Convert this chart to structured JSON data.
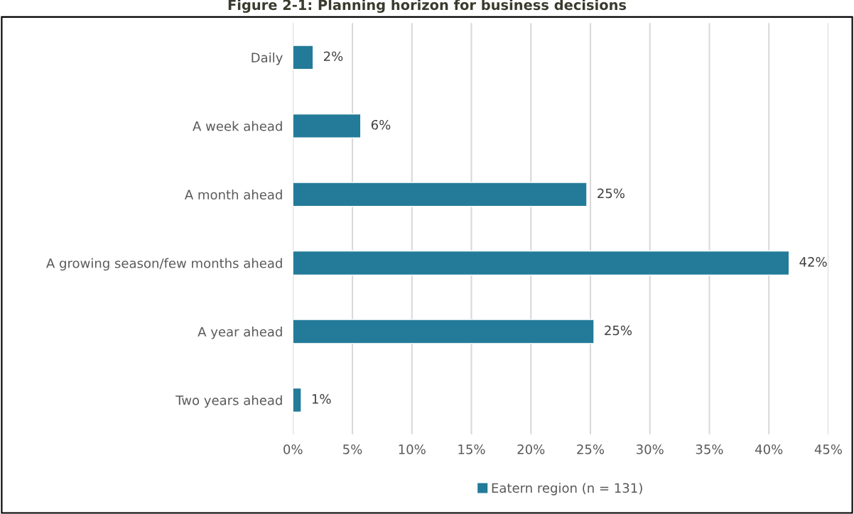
{
  "chart_data": {
    "type": "bar",
    "orientation": "horizontal",
    "title": "Figure 2-1: Planning horizon for business decisions",
    "categories": [
      "Daily",
      "A week ahead",
      "A month ahead",
      "A growing season/few months ahead",
      "A year ahead",
      "Two years ahead"
    ],
    "series": [
      {
        "name": "Eatern region (n = 131)",
        "color": "#237b99",
        "values": [
          1.7,
          5.7,
          24.7,
          41.7,
          25.3,
          0.7
        ],
        "value_labels": [
          "2%",
          "6%",
          "25%",
          "42%",
          "25%",
          "1%"
        ]
      }
    ],
    "xlim": [
      0,
      45
    ],
    "xticks": [
      {
        "value": 0,
        "label": "0%"
      },
      {
        "value": 5,
        "label": "5%"
      },
      {
        "value": 10,
        "label": "10%"
      },
      {
        "value": 15,
        "label": "15%"
      },
      {
        "value": 20,
        "label": "20%"
      },
      {
        "value": 25,
        "label": "25%"
      },
      {
        "value": 30,
        "label": "30%"
      },
      {
        "value": 35,
        "label": "35%"
      },
      {
        "value": 40,
        "label": "40%"
      },
      {
        "value": 45,
        "label": "45%"
      }
    ],
    "grid": "x",
    "legend": "bottom"
  }
}
